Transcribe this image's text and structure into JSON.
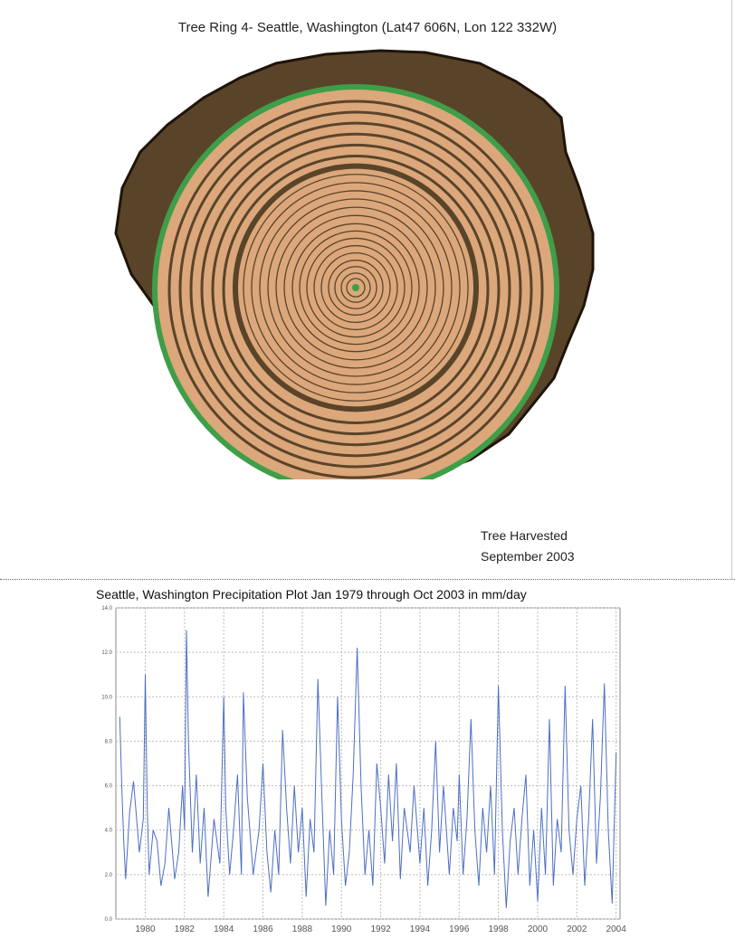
{
  "figure": {
    "title": "Tree Ring 4- Seattle, Washington (Lat47 606N, Lon 122 332W)",
    "caption_line1": "Tree Harvested",
    "caption_line2": "September 2003"
  },
  "colors": {
    "bark": "#5a4429",
    "wood": "#dba77b",
    "ring": "#5a4429",
    "cambium": "#3f9e48",
    "pith": "#3f9e48",
    "series": "#4c6fc2"
  },
  "chart_data": {
    "type": "line",
    "title": "Seattle, Washington Precipitation Plot Jan 1979 through Oct 2003 in mm/day",
    "xlabel": "",
    "ylabel": "",
    "xlim": [
      1978.5,
      2004.2
    ],
    "ylim": [
      0,
      14
    ],
    "xticks": [
      "1980",
      "1982",
      "1984",
      "1986",
      "1988",
      "1990",
      "1992",
      "1994",
      "1996",
      "1998",
      "2000",
      "2002",
      "2004"
    ],
    "yticks": [
      "0.0",
      "2.0",
      "4.0",
      "6.0",
      "8.0",
      "10.0",
      "12.0",
      "14.0"
    ],
    "grid": true,
    "series": [
      {
        "x": [
          1978.7,
          1978.8,
          1978.9,
          1979.0,
          1979.2,
          1979.4,
          1979.7,
          1979.9,
          1980.0,
          1980.1,
          1980.2,
          1980.4,
          1980.6,
          1980.8,
          1981.0,
          1981.2,
          1981.5,
          1981.7,
          1981.9,
          1982.0,
          1982.1,
          1982.2,
          1982.4,
          1982.6,
          1982.8,
          1983.0,
          1983.2,
          1983.5,
          1983.8,
          1984.0,
          1984.1,
          1984.3,
          1984.5,
          1984.7,
          1984.9,
          1985.0,
          1985.2,
          1985.5,
          1985.8,
          1986.0,
          1986.2,
          1986.4,
          1986.6,
          1986.8,
          1987.0,
          1987.2,
          1987.4,
          1987.6,
          1987.8,
          1988.0,
          1988.2,
          1988.4,
          1988.6,
          1988.8,
          1989.0,
          1989.2,
          1989.4,
          1989.6,
          1989.8,
          1990.0,
          1990.2,
          1990.4,
          1990.6,
          1990.8,
          1991.0,
          1991.2,
          1991.4,
          1991.6,
          1991.8,
          1992.0,
          1992.2,
          1992.4,
          1992.6,
          1992.8,
          1993.0,
          1993.2,
          1993.5,
          1993.7,
          1994.0,
          1994.2,
          1994.4,
          1994.6,
          1994.8,
          1995.0,
          1995.2,
          1995.5,
          1995.7,
          1995.9,
          1996.0,
          1996.2,
          1996.4,
          1996.6,
          1996.8,
          1997.0,
          1997.2,
          1997.4,
          1997.6,
          1997.8,
          1998.0,
          1998.2,
          1998.4,
          1998.6,
          1998.8,
          1999.0,
          1999.2,
          1999.4,
          1999.6,
          1999.8,
          2000.0,
          2000.2,
          2000.4,
          2000.6,
          2000.8,
          2001.0,
          2001.2,
          2001.4,
          2001.6,
          2001.8,
          2002.0,
          2002.2,
          2002.4,
          2002.6,
          2002.8,
          2003.0,
          2003.2,
          2003.4,
          2003.6,
          2003.8,
          2004.0
        ],
        "values": [
          9.1,
          6.0,
          3.5,
          1.8,
          4.8,
          6.2,
          3.0,
          4.5,
          11.0,
          5.0,
          2.0,
          4.0,
          3.5,
          1.5,
          2.5,
          5.0,
          1.8,
          3.0,
          6.0,
          4.0,
          13.0,
          8.0,
          3.0,
          6.5,
          2.5,
          5.0,
          1.0,
          4.5,
          2.5,
          10.0,
          5.0,
          2.0,
          4.0,
          6.5,
          2.0,
          10.2,
          5.5,
          2.0,
          4.0,
          7.0,
          3.0,
          1.2,
          4.0,
          2.0,
          8.5,
          5.0,
          2.5,
          6.0,
          3.0,
          5.0,
          1.0,
          4.5,
          3.0,
          10.8,
          5.5,
          0.6,
          4.0,
          2.0,
          10.0,
          4.5,
          1.5,
          3.0,
          6.5,
          12.2,
          6.0,
          2.0,
          4.0,
          1.5,
          7.0,
          5.0,
          2.5,
          6.5,
          3.5,
          7.0,
          1.8,
          5.0,
          3.0,
          6.0,
          2.5,
          5.0,
          1.5,
          4.0,
          8.0,
          3.0,
          6.0,
          2.0,
          5.0,
          3.5,
          6.5,
          2.0,
          4.5,
          9.0,
          4.0,
          1.5,
          5.0,
          3.0,
          6.0,
          2.0,
          10.5,
          4.0,
          0.5,
          3.5,
          5.0,
          2.0,
          4.5,
          6.5,
          1.5,
          4.0,
          0.8,
          5.0,
          2.0,
          9.0,
          1.5,
          4.5,
          3.0,
          10.5,
          4.0,
          2.0,
          4.5,
          6.0,
          1.5,
          4.5,
          9.0,
          2.5,
          5.5,
          10.6,
          4.0,
          0.7,
          7.5
        ]
      }
    ]
  }
}
